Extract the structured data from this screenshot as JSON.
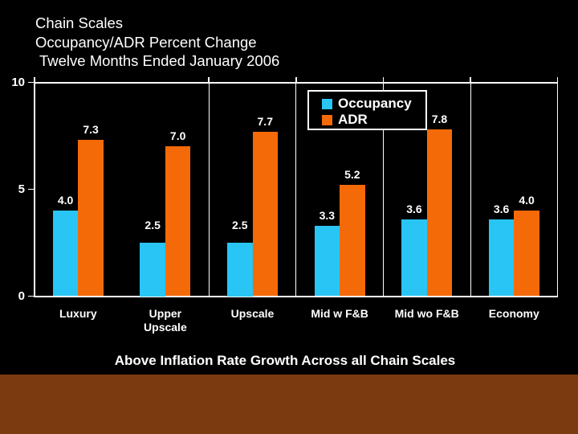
{
  "title": {
    "line1": "Chain Scales",
    "line2": "Occupancy/ADR Percent Change",
    "line3": "Twelve Months Ended January 2006"
  },
  "chart_data": {
    "type": "bar",
    "title": "Chain Scales Occupancy/ADR Percent Change, Twelve Months Ended January 2006",
    "categories": [
      "Luxury",
      "Upper Upscale",
      "Upscale",
      "Mid w F&B",
      "Mid wo F&B",
      "Economy"
    ],
    "series": [
      {
        "name": "Occupancy",
        "color": "#29C5F4",
        "values": [
          4.0,
          2.5,
          2.5,
          3.3,
          3.6,
          3.6
        ],
        "label_dy": [
          0,
          -9,
          -9,
          0,
          0,
          0
        ]
      },
      {
        "name": "ADR",
        "color": "#F56A08",
        "values": [
          7.3,
          7.0,
          7.7,
          5.2,
          7.8,
          4.0
        ],
        "label_dy": [
          0,
          0,
          0,
          0,
          0,
          0
        ]
      }
    ],
    "ylim": [
      0,
      10
    ],
    "yticks": [
      0,
      5,
      10
    ],
    "xlabel": "",
    "ylabel": "",
    "grid": "vertical-category-separators",
    "legend_position": "top-right-inside",
    "value_labels": "outside-end"
  },
  "caption": "Above Inflation Rate Growth Across all Chain Scales",
  "colors": {
    "background": "#000000",
    "text": "#FFFFFF",
    "axis": "#FFFFFF",
    "occupancy": "#29C5F4",
    "adr": "#F56A08",
    "footer_band": "#7C3A11",
    "legend_border": "#FFFFFF",
    "legend_background": "#000000"
  }
}
